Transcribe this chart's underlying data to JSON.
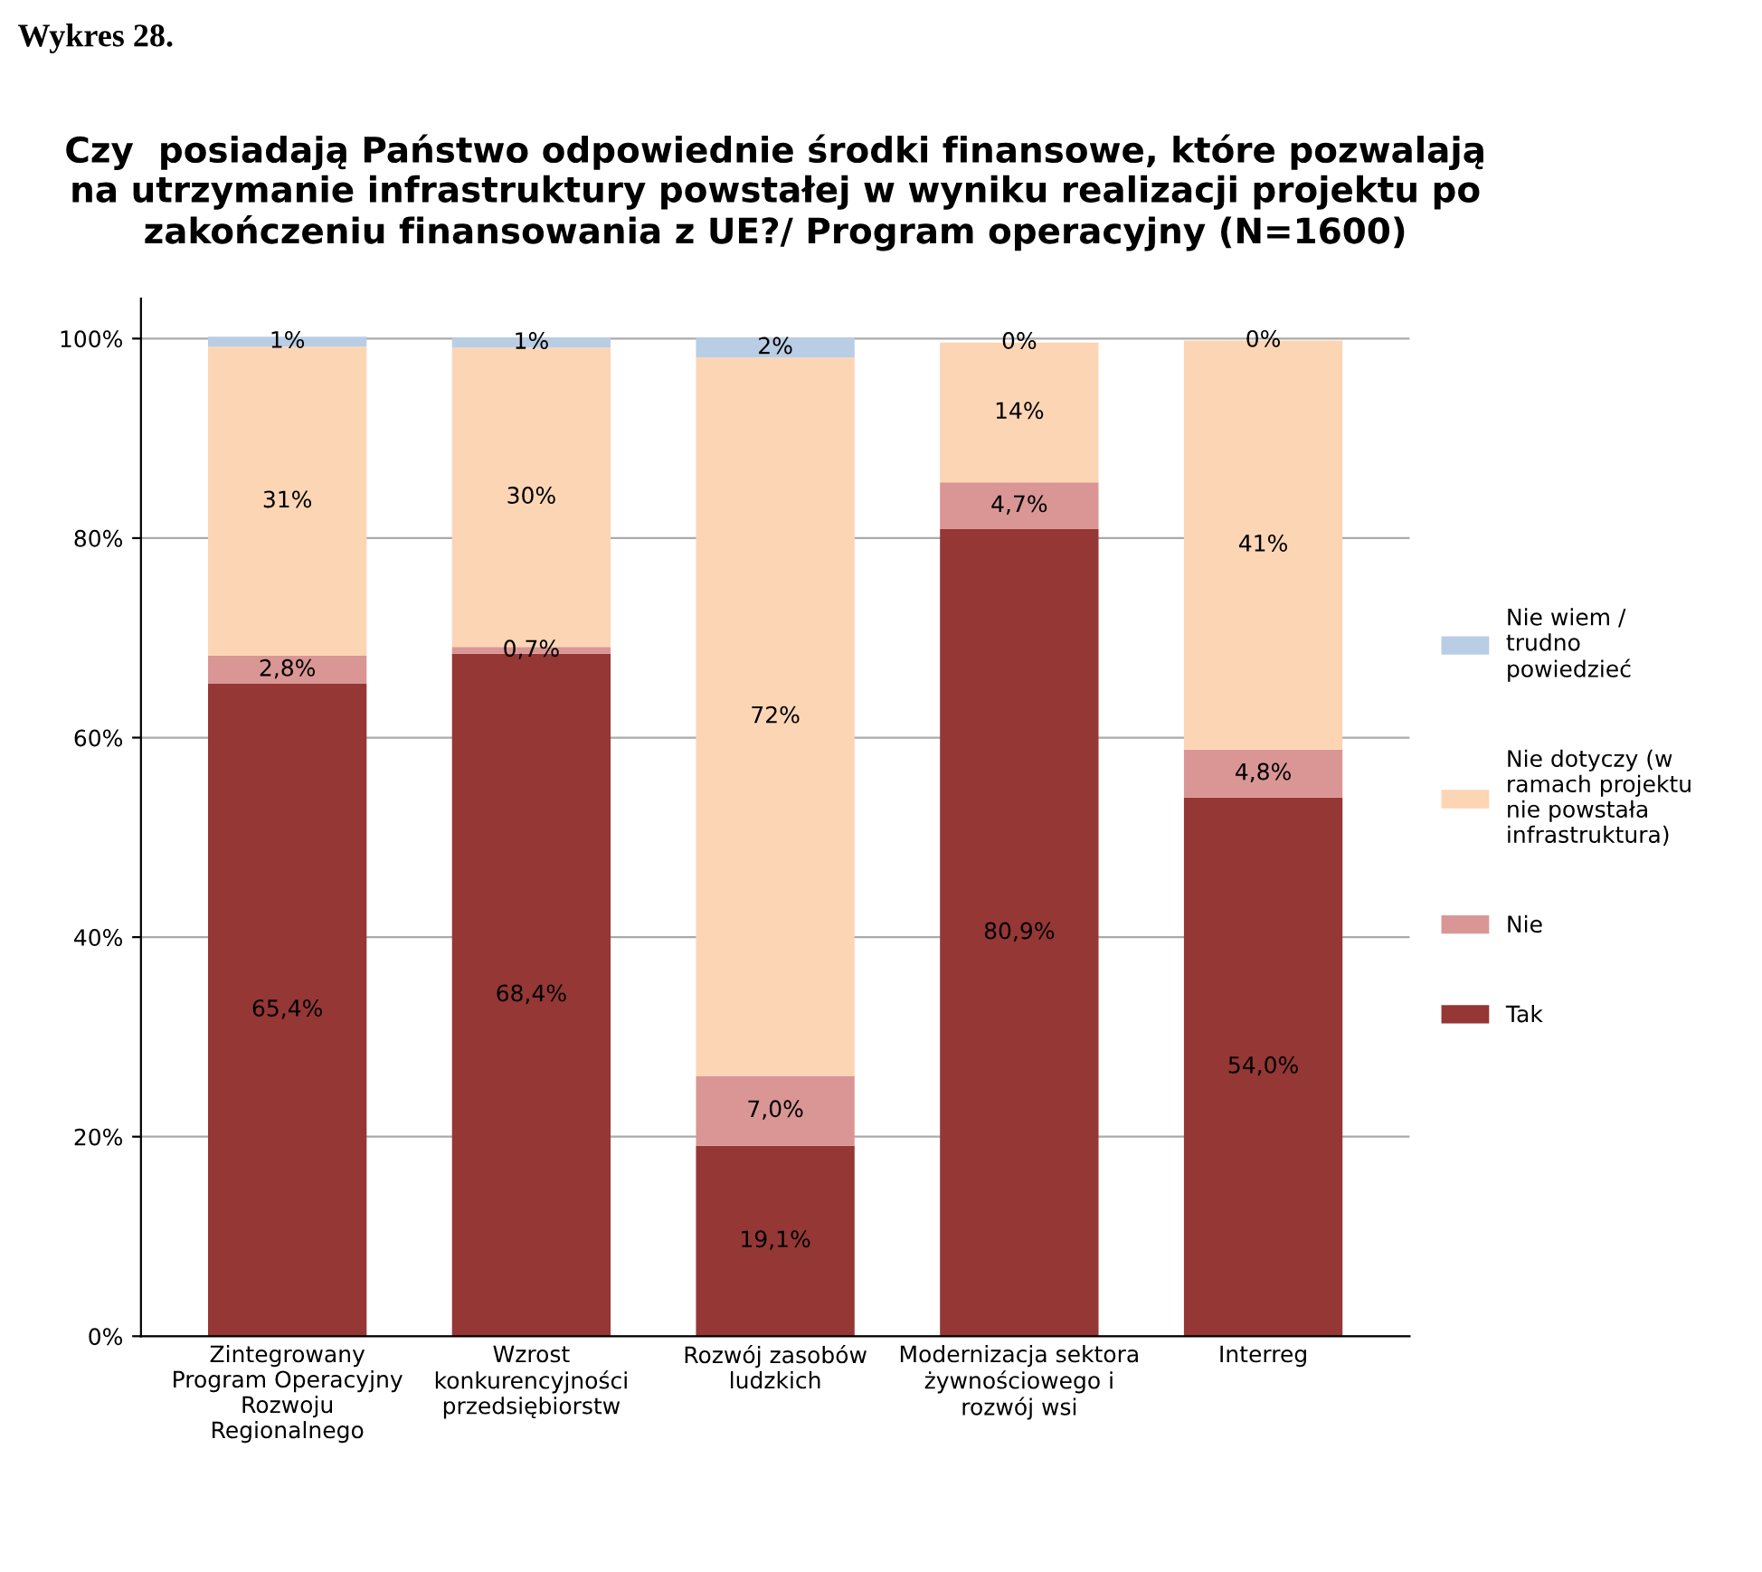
{
  "chart_data": {
    "type": "bar",
    "stacked": true,
    "title": "Czy  posiadają Państwo odpowiednie środki finansowe, które pozwalają\nna utrzymanie infrastruktury powstałej w wyniku realizacji projektu po\nzakończeniu finansowania z UE?/ Program operacyjny (N=1600)",
    "annotations": [
      "Wykres 28."
    ],
    "categories": [
      "Zintegrowany\nProgram Operacyjny\nRozwoju\nRegionalnego",
      "Wzrost\nkonkurencyjności\nprzedsiębiorstw",
      "Rozwój zasobów\nludzkich",
      "Modernizacja sektora\nżywnościowego i\nrozwój wsi",
      "Interreg"
    ],
    "series": [
      {
        "name": "Tak",
        "color": "#953735",
        "values": [
          65.4,
          68.4,
          19.1,
          80.9,
          54.0
        ],
        "value_labels": [
          "65,4%",
          "68,4%",
          "19,1%",
          "80,9%",
          "54,0%"
        ]
      },
      {
        "name": "Nie",
        "color": "#d99694",
        "values": [
          2.8,
          0.7,
          7.0,
          4.7,
          4.8
        ],
        "value_labels": [
          "2,8%",
          "0,7%",
          "7,0%",
          "4,7%",
          "4,8%"
        ]
      },
      {
        "name": "Nie dotyczy (w\nramach projektu\nnie powstała\ninfrastruktura)",
        "color": "#fcd5b5",
        "values": [
          31,
          30,
          72,
          14,
          41
        ],
        "value_labels": [
          "31%",
          "30%",
          "72%",
          "14%",
          "41%"
        ]
      },
      {
        "name": "Nie wiem /\ntrudno\npowiedzieć",
        "color": "#b9cde5",
        "values": [
          1,
          1,
          2,
          0,
          0
        ],
        "value_labels": [
          "1%",
          "1%",
          "2%",
          "0%",
          "0%"
        ]
      }
    ],
    "ylim": [
      0,
      104
    ],
    "yticks": [
      {
        "value": 0,
        "label": "0%"
      },
      {
        "value": 20,
        "label": "20%"
      },
      {
        "value": 40,
        "label": "40%"
      },
      {
        "value": 60,
        "label": "60%"
      },
      {
        "value": 80,
        "label": "80%"
      },
      {
        "value": 100,
        "label": "100%"
      }
    ],
    "grid": "y",
    "legend": "right"
  }
}
